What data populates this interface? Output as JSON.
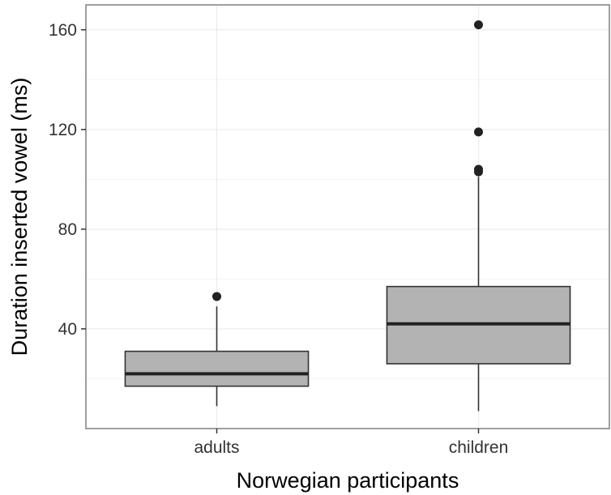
{
  "chart_data": {
    "type": "box",
    "title": "",
    "xlabel": "Norwegian participants",
    "ylabel": "Duration inserted vowel (ms)",
    "ylim": [
      0,
      170
    ],
    "yticks": [
      40,
      80,
      120,
      160
    ],
    "grid": true,
    "categories": [
      "adults",
      "children"
    ],
    "boxes": [
      {
        "category": "adults",
        "whisker_low": 9,
        "q1": 17,
        "median": 22,
        "q3": 31,
        "whisker_high": 49,
        "outliers": [
          53
        ]
      },
      {
        "category": "children",
        "whisker_low": 7,
        "q1": 26,
        "median": 42,
        "q3": 57,
        "whisker_high": 101,
        "outliers": [
          103,
          104,
          119,
          162
        ]
      }
    ],
    "colors": {
      "box_fill": "#b3b3b3",
      "box_stroke": "#333333",
      "median": "#222222",
      "grid": "#ebebeb",
      "panel_border": "#7f7f7f",
      "point": "#222222"
    }
  }
}
